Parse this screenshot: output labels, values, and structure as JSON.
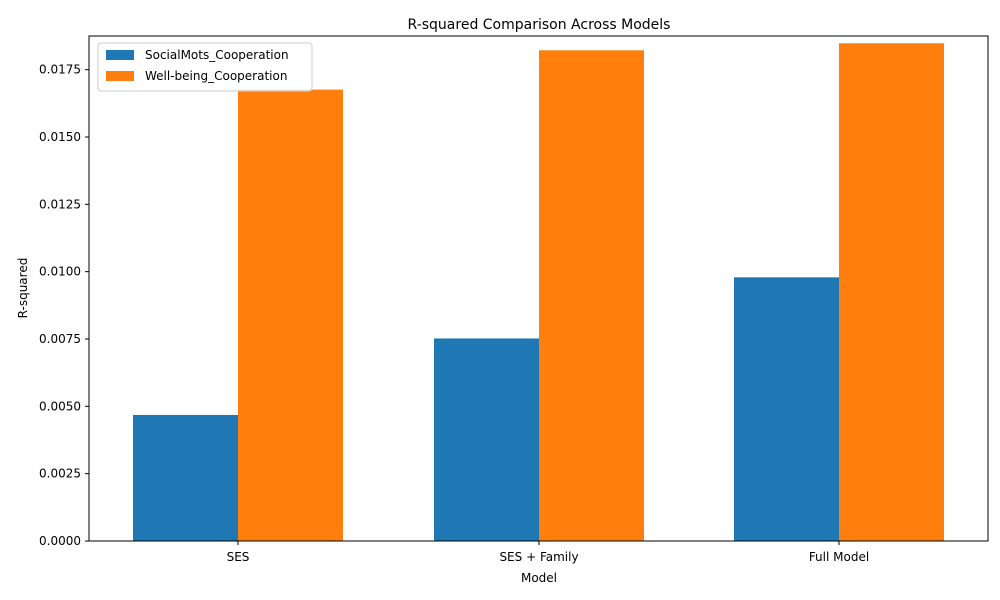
{
  "chart_data": {
    "type": "bar",
    "title": "R-squared Comparison Across Models",
    "xlabel": "Model",
    "ylabel": "R-squared",
    "categories": [
      "SES",
      "SES + Family",
      "Full Model"
    ],
    "series": [
      {
        "name": "SocialMots_Cooperation",
        "values": [
          0.00468,
          0.00752,
          0.00979
        ],
        "color": "#1f77b4"
      },
      {
        "name": "Well-being_Cooperation",
        "values": [
          0.01676,
          0.01822,
          0.01848
        ],
        "color": "#ff7f0e"
      }
    ],
    "ylim": [
      0,
      0.01875
    ],
    "yticks": [
      "0.0000",
      "0.0025",
      "0.0050",
      "0.0075",
      "0.0100",
      "0.0125",
      "0.0150",
      "0.0175"
    ],
    "legend_position": "top-left",
    "grid": false
  }
}
